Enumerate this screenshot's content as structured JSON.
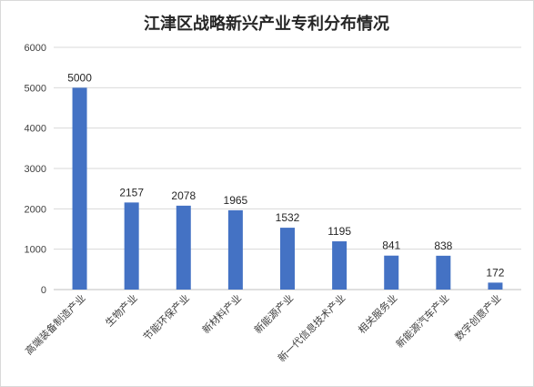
{
  "chart_data": {
    "type": "bar",
    "title": "江津区战略新兴产业专利分布情况",
    "categories": [
      "高端装备制造产业",
      "生物产业",
      "节能环保产业",
      "新材料产业",
      "新能源产业",
      "新一代信息技术产业",
      "相关服务业",
      "新能源汽车产业",
      "数字创意产业"
    ],
    "values": [
      5000,
      2157,
      2078,
      1965,
      1532,
      1195,
      841,
      838,
      172
    ],
    "yticks": [
      0,
      1000,
      2000,
      3000,
      4000,
      5000,
      6000
    ],
    "ylim": [
      0,
      6000
    ],
    "bar_color": "#4472c4",
    "grid": true,
    "legend": "none"
  }
}
